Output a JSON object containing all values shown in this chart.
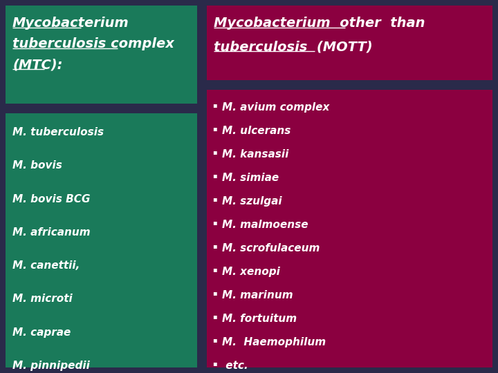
{
  "background_color": "#2a2a4a",
  "left_header_bg": "#1a7a5a",
  "left_header_text_lines": [
    "Mycobacterium",
    "tuberculosis complex",
    "(MTC):"
  ],
  "left_body_bg": "#1a7a5a",
  "left_body_items": [
    "M. tuberculosis",
    "M. bovis",
    "M. bovis BCG",
    "M. africanum",
    "M. canettii,",
    "M. microti",
    "M. caprae",
    "M. pinnipedii"
  ],
  "right_header_bg": "#8b0040",
  "right_header_text_lines": [
    "Mycobacterium  other  than",
    "tuberculosis  (MOTT)"
  ],
  "right_body_bg": "#8b0040",
  "right_body_items": [
    "M. avium complex",
    "M. ulcerans",
    "M. kansasii",
    "M. simiae",
    "M. szulgai",
    "M. malmoense",
    "M. scrofulaceum",
    "M. xenopi",
    "M. marinum",
    "M. fortuitum",
    "M.  Haemophilum",
    " etc."
  ],
  "text_color": "#ffffff",
  "font_size_header": 14,
  "font_size_body": 11,
  "bullet": "▪"
}
